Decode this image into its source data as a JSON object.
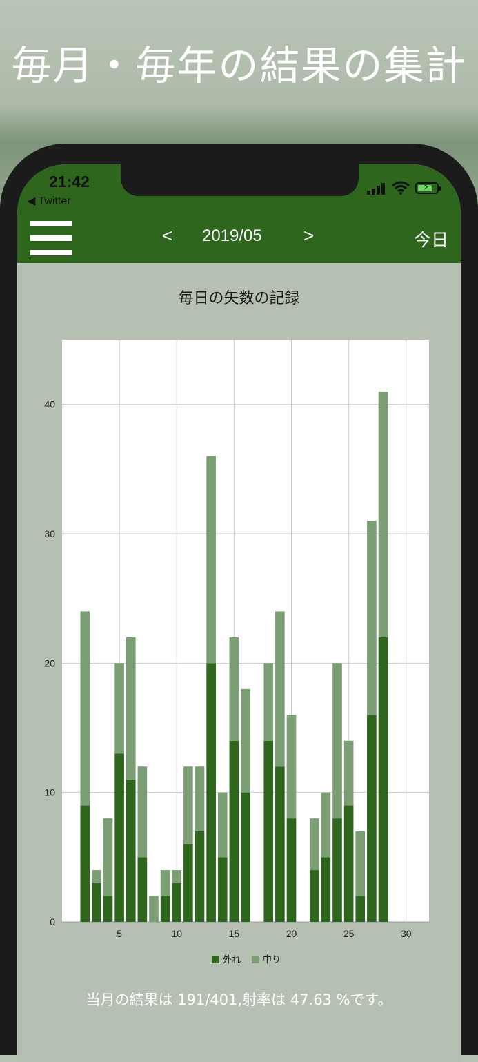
{
  "headline": "毎月・毎年の結果の集計",
  "status_bar": {
    "time": "21:42",
    "back_app": "◀ Twitter"
  },
  "navbar": {
    "prev_label": "<",
    "month": "2019/05",
    "next_label": ">",
    "today_label": "今日"
  },
  "chart_data": {
    "type": "bar",
    "stacked": true,
    "title": "毎日の矢数の記録",
    "x": [
      2,
      3,
      4,
      5,
      6,
      7,
      8,
      9,
      10,
      11,
      12,
      13,
      14,
      15,
      16,
      18,
      19,
      20,
      22,
      23,
      24,
      25,
      26,
      27,
      28
    ],
    "series": [
      {
        "name": "外れ",
        "color": "#2d661c",
        "values": [
          9,
          3,
          2,
          13,
          11,
          5,
          0,
          2,
          3,
          6,
          7,
          20,
          5,
          14,
          10,
          14,
          12,
          8,
          4,
          5,
          8,
          9,
          2,
          16,
          22
        ]
      },
      {
        "name": "中り",
        "color": "#7b9e74",
        "values": [
          15,
          1,
          6,
          7,
          11,
          7,
          2,
          2,
          1,
          6,
          5,
          16,
          5,
          8,
          8,
          6,
          12,
          8,
          4,
          5,
          12,
          5,
          5,
          15,
          19
        ]
      }
    ],
    "xlim": [
      0,
      32
    ],
    "ylim": [
      0,
      45
    ],
    "x_ticks": [
      5,
      10,
      15,
      20,
      25,
      30
    ],
    "y_ticks": [
      0,
      10,
      20,
      30,
      40
    ],
    "grid": true,
    "legend_position": "bottom-center"
  },
  "summary": "当月の結果は 191/401,射率は 47.63 %です。"
}
